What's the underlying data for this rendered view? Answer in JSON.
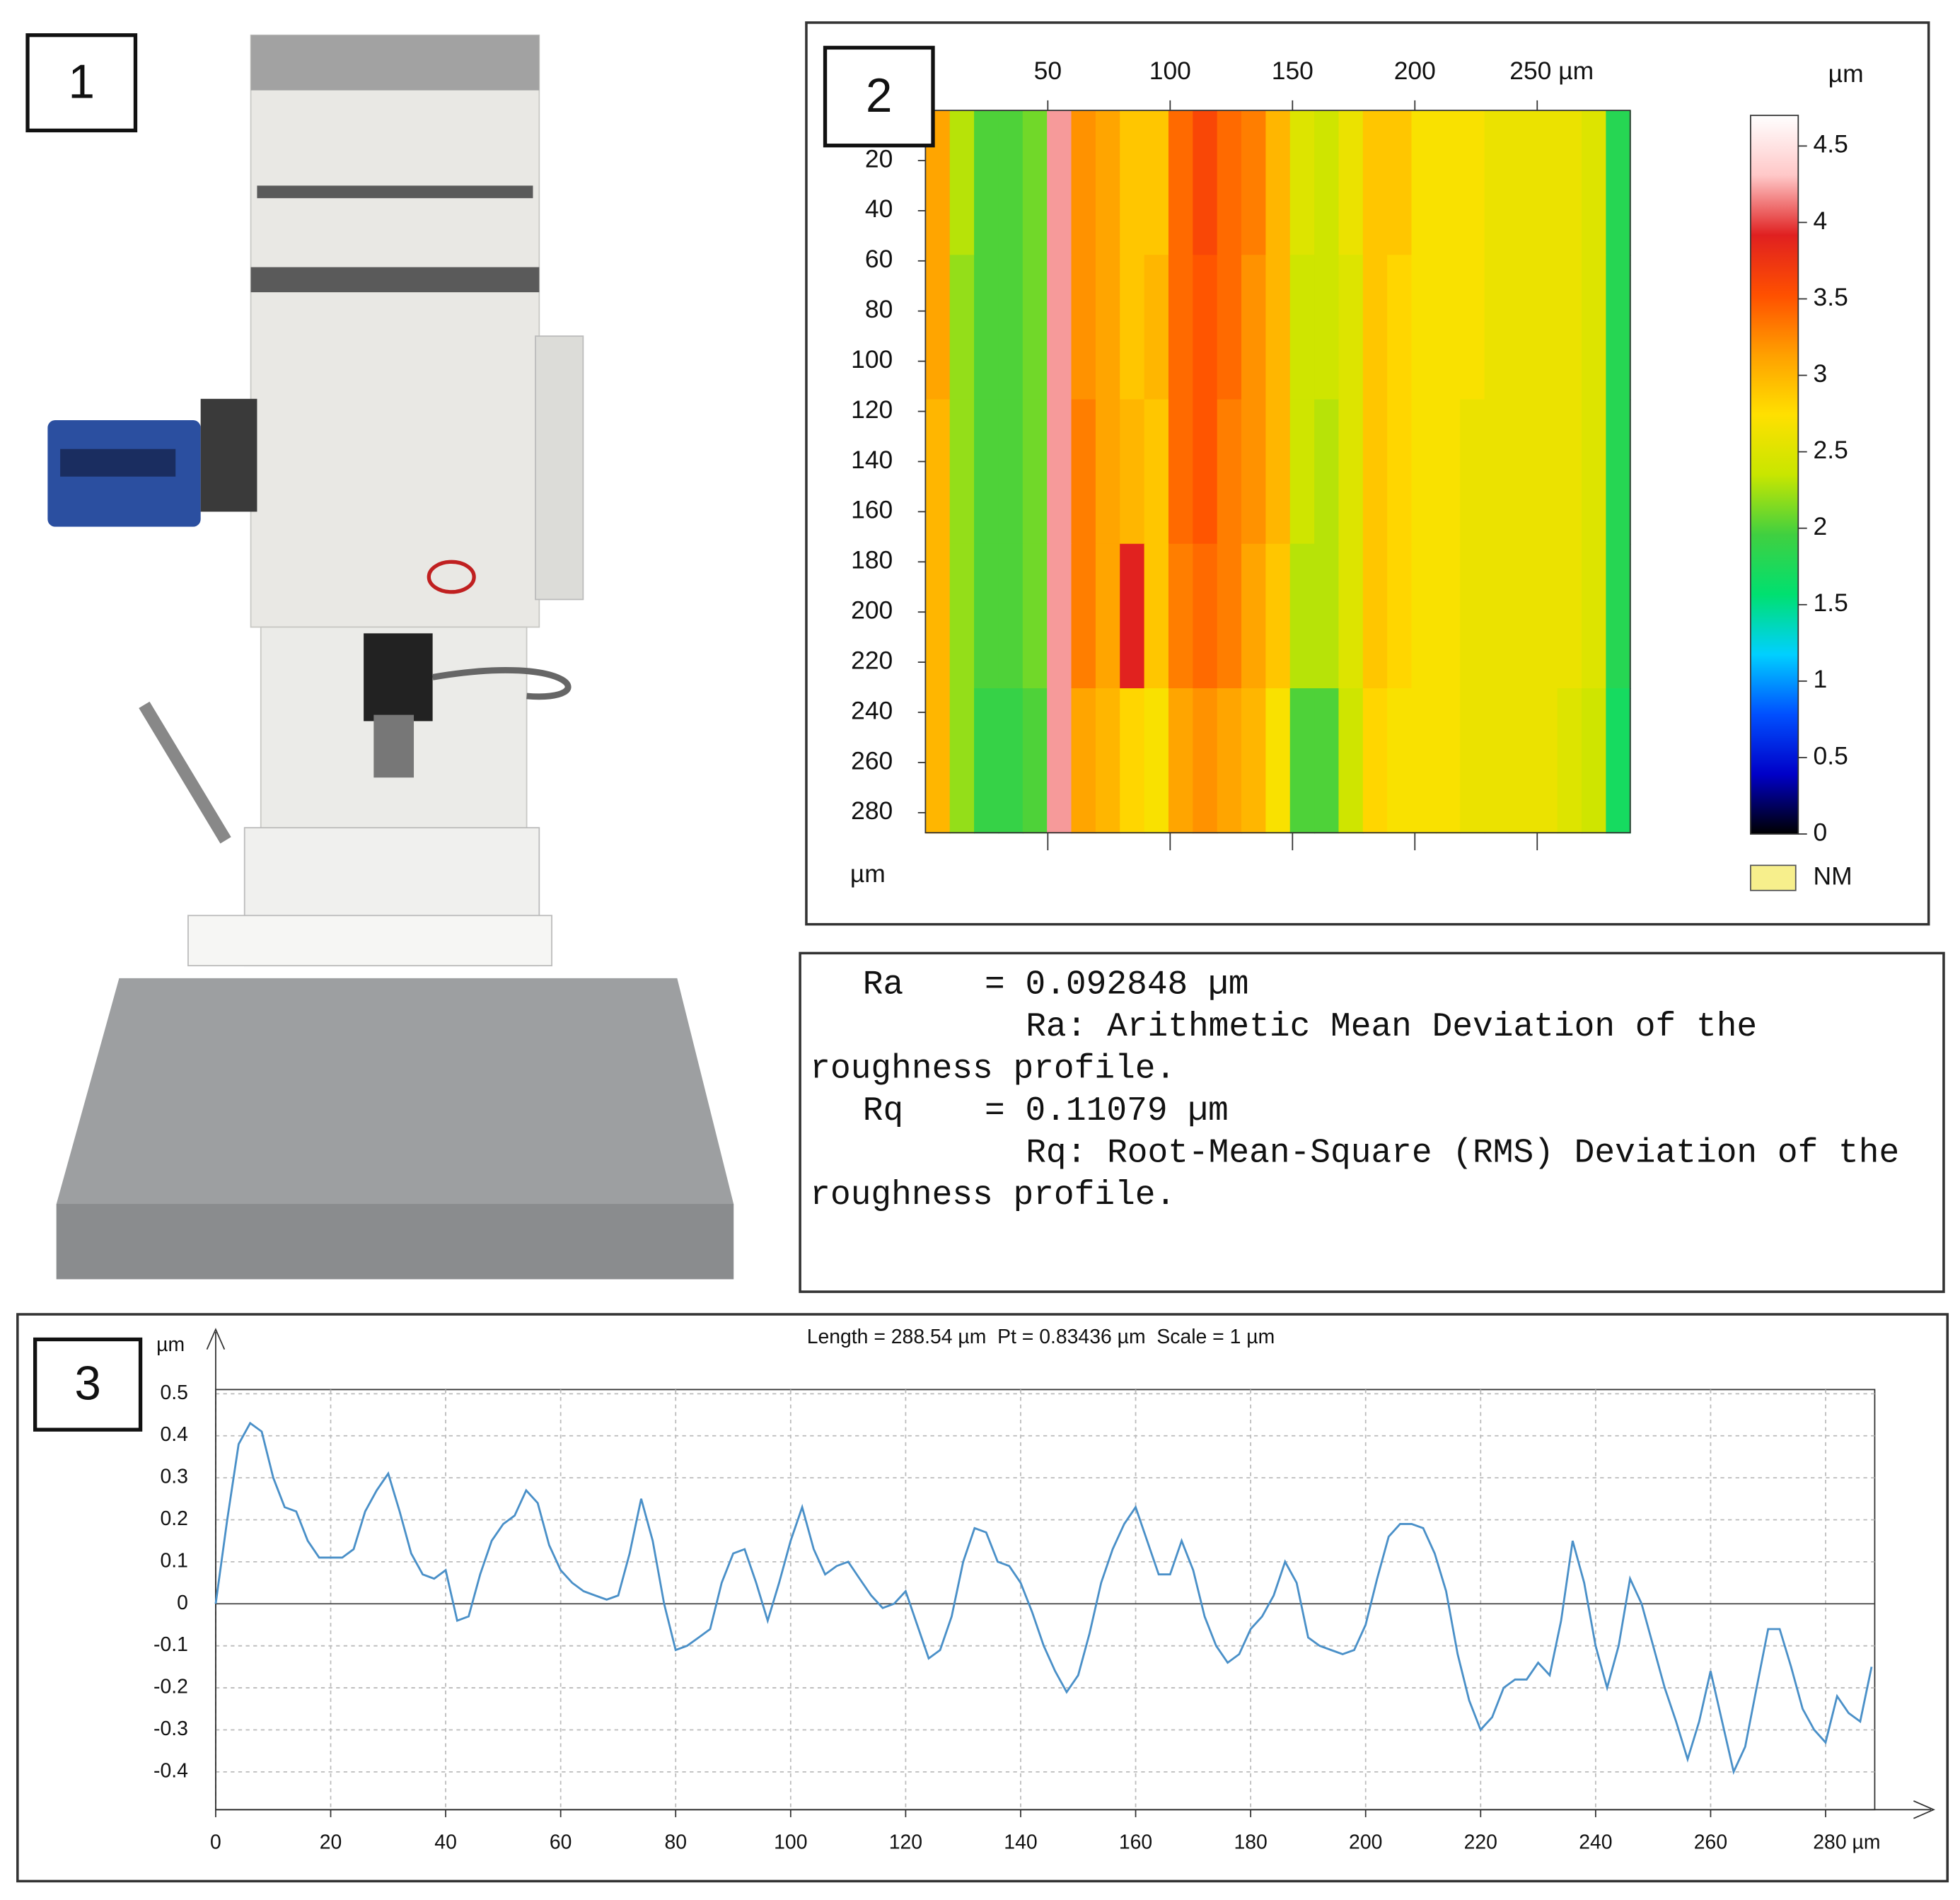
{
  "panels": [
    "1",
    "2",
    "3"
  ],
  "roughness_text": {
    "lines": [
      "Ra    = 0.092848 µm",
      "Ra: Arithmetic Mean Deviation of the",
      "roughness profile.",
      "Rq    = 0.11079 µm",
      "Rq: Root-Mean-Square (RMS) Deviation of the",
      "roughness profile."
    ]
  },
  "chart_data": [
    {
      "type": "heatmap",
      "ylabel": "µm",
      "zlabel": "µm",
      "xlim": [
        0,
        288
      ],
      "ylim": [
        0,
        288
      ],
      "xticks": [
        50,
        100,
        150,
        200,
        {
          "value": 250,
          "label": "250 µm"
        }
      ],
      "yticks": [
        20,
        40,
        60,
        80,
        100,
        120,
        140,
        160,
        180,
        200,
        220,
        240,
        260,
        280
      ],
      "zlim": [
        0,
        4.7
      ],
      "zticks": [
        0,
        0.5,
        1,
        1.5,
        2,
        2.5,
        3,
        3.5,
        4,
        4.5
      ],
      "colors": [
        "#000000",
        "#0000c8",
        "#0050ff",
        "#00d0ff",
        "#00e070",
        "#40d040",
        "#c8e600",
        "#ffe000",
        "#ffa000",
        "#ff5000",
        "#e02020",
        "#ffc8c8",
        "#ffffff"
      ],
      "legend": [
        {
          "name": "NM",
          "color": "#f7ef8c"
        }
      ],
      "z": [
        [
          3.1,
          2.3,
          2.0,
          2.0,
          2.1,
          4.2,
          3.2,
          3.1,
          2.9,
          2.9,
          3.4,
          3.6,
          3.4,
          3.3,
          3.0,
          2.5,
          2.4,
          2.6,
          2.9,
          2.9,
          2.7,
          2.7,
          2.7,
          2.6,
          2.6,
          2.6,
          2.6,
          2.5,
          1.8
        ],
        [
          3.1,
          2.2,
          2.0,
          2.0,
          2.1,
          4.2,
          3.2,
          3.1,
          2.9,
          3.0,
          3.4,
          3.5,
          3.4,
          3.2,
          3.0,
          2.4,
          2.4,
          2.5,
          2.9,
          2.8,
          2.7,
          2.7,
          2.7,
          2.6,
          2.6,
          2.6,
          2.6,
          2.5,
          1.8
        ],
        [
          3.0,
          2.2,
          2.0,
          2.0,
          2.1,
          4.2,
          3.3,
          3.1,
          3.0,
          2.9,
          3.4,
          3.5,
          3.3,
          3.2,
          3.0,
          2.4,
          2.3,
          2.5,
          2.9,
          2.8,
          2.7,
          2.7,
          2.6,
          2.6,
          2.6,
          2.6,
          2.6,
          2.5,
          1.8
        ],
        [
          3.0,
          2.2,
          2.0,
          2.0,
          2.1,
          4.2,
          3.3,
          3.1,
          3.9,
          2.9,
          3.3,
          3.4,
          3.3,
          3.1,
          2.9,
          2.3,
          2.3,
          2.5,
          2.9,
          2.8,
          2.7,
          2.7,
          2.6,
          2.6,
          2.6,
          2.6,
          2.6,
          2.5,
          1.8
        ],
        [
          3.0,
          2.2,
          1.9,
          1.9,
          2.0,
          4.2,
          3.1,
          3.0,
          2.8,
          2.7,
          3.1,
          3.2,
          3.1,
          3.0,
          2.7,
          2.0,
          2.0,
          2.4,
          2.8,
          2.7,
          2.7,
          2.7,
          2.6,
          2.6,
          2.6,
          2.6,
          2.5,
          2.4,
          1.7
        ]
      ]
    },
    {
      "type": "line",
      "title": "Length = 288.54 µm  Pt = 0.83436 µm  Scale = 1 µm",
      "ylabel": "µm",
      "xlim": [
        0,
        288.54
      ],
      "ylim": [
        -0.49,
        0.51
      ],
      "grid": true,
      "color": "#4a90c8",
      "xticks": [
        0,
        20,
        40,
        60,
        80,
        100,
        120,
        140,
        160,
        180,
        200,
        220,
        240,
        260,
        {
          "value": 280,
          "label": "280 µm"
        }
      ],
      "yticks": [
        0.5,
        0.4,
        0.3,
        0.2,
        0.1,
        0,
        -0.1,
        -0.2,
        -0.3,
        -0.4
      ],
      "x": [
        0,
        2,
        4,
        6,
        8,
        10,
        12,
        14,
        16,
        18,
        20,
        22,
        24,
        26,
        28,
        30,
        32,
        34,
        36,
        38,
        40,
        42,
        44,
        46,
        48,
        50,
        52,
        54,
        56,
        58,
        60,
        62,
        64,
        66,
        68,
        70,
        72,
        74,
        76,
        78,
        80,
        82,
        84,
        86,
        88,
        90,
        92,
        94,
        96,
        98,
        100,
        102,
        104,
        106,
        108,
        110,
        112,
        114,
        116,
        118,
        120,
        122,
        124,
        126,
        128,
        130,
        132,
        134,
        136,
        138,
        140,
        142,
        144,
        146,
        148,
        150,
        152,
        154,
        156,
        158,
        160,
        162,
        164,
        166,
        168,
        170,
        172,
        174,
        176,
        178,
        180,
        182,
        184,
        186,
        188,
        190,
        192,
        194,
        196,
        198,
        200,
        202,
        204,
        206,
        208,
        210,
        212,
        214,
        216,
        218,
        220,
        222,
        224,
        226,
        228,
        230,
        232,
        234,
        236,
        238,
        240,
        242,
        244,
        246,
        248,
        250,
        252,
        254,
        256,
        258,
        260,
        262,
        264,
        266,
        268,
        270,
        272,
        274,
        276,
        278,
        280,
        282,
        284,
        286,
        288
      ],
      "values": [
        0,
        0.2,
        0.38,
        0.43,
        0.41,
        0.3,
        0.23,
        0.22,
        0.15,
        0.11,
        0.11,
        0.11,
        0.13,
        0.22,
        0.27,
        0.31,
        0.22,
        0.12,
        0.07,
        0.06,
        0.08,
        -0.04,
        -0.03,
        0.07,
        0.15,
        0.19,
        0.21,
        0.27,
        0.24,
        0.14,
        0.08,
        0.05,
        0.03,
        0.02,
        0.01,
        0.02,
        0.12,
        0.25,
        0.15,
        0,
        -0.11,
        -0.1,
        -0.08,
        -0.06,
        0.05,
        0.12,
        0.13,
        0.05,
        -0.04,
        0.05,
        0.15,
        0.23,
        0.13,
        0.07,
        0.09,
        0.1,
        0.06,
        0.02,
        -0.01,
        0,
        0.03,
        -0.05,
        -0.13,
        -0.11,
        -0.03,
        0.1,
        0.18,
        0.17,
        0.1,
        0.09,
        0.05,
        -0.02,
        -0.1,
        -0.16,
        -0.21,
        -0.17,
        -0.07,
        0.05,
        0.13,
        0.19,
        0.23,
        0.15,
        0.07,
        0.07,
        0.15,
        0.08,
        -0.03,
        -0.1,
        -0.14,
        -0.12,
        -0.06,
        -0.03,
        0.02,
        0.1,
        0.05,
        -0.08,
        -0.1,
        -0.11,
        -0.12,
        -0.11,
        -0.05,
        0.06,
        0.16,
        0.19,
        0.19,
        0.18,
        0.12,
        0.03,
        -0.12,
        -0.23,
        -0.3,
        -0.27,
        -0.2,
        -0.18,
        -0.18,
        -0.14,
        -0.17,
        -0.04,
        0.15,
        0.05,
        -0.1,
        -0.2,
        -0.1,
        0.06,
        0,
        -0.1,
        -0.2,
        -0.28,
        -0.37,
        -0.28,
        -0.16,
        -0.28,
        -0.4,
        -0.34,
        -0.2,
        -0.06,
        -0.06,
        -0.15,
        -0.25,
        -0.3,
        -0.33,
        -0.22,
        -0.26,
        -0.28,
        -0.15
      ]
    }
  ]
}
